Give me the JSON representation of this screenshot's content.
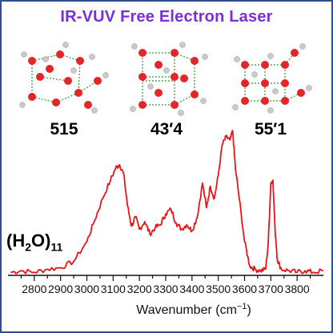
{
  "title": "IR-VUV Free Electron Laser",
  "title_color": "#7b2fd6",
  "clusters": [
    {
      "label": "515"
    },
    {
      "label": "43′4"
    },
    {
      "label": "55′1"
    }
  ],
  "species": {
    "main": "(H",
    "sub_1": "2",
    "mid": "O)",
    "sub_2": "11"
  },
  "colors": {
    "spectrum": "#e8141a",
    "oxygen": "#e4262b",
    "hydrogen": "#c9c9c9",
    "hbond": "#2e9a3a",
    "frame": "#2f4f8f"
  },
  "chart_data": {
    "type": "line",
    "title": "IR-VUV Free Electron Laser",
    "xlabel": "Wavenumber (cm−1)",
    "ylabel": "",
    "xlim": [
      2700,
      3900
    ],
    "ylim": [
      0,
      1
    ],
    "x_ticks": [
      2800,
      2900,
      3000,
      3100,
      3200,
      3300,
      3400,
      3500,
      3600,
      3700,
      3800
    ],
    "series": [
      {
        "name": "(H2O)11",
        "points": [
          [
            2710,
            0.02
          ],
          [
            2750,
            0.03
          ],
          [
            2800,
            0.02
          ],
          [
            2850,
            0.04
          ],
          [
            2900,
            0.05
          ],
          [
            2950,
            0.09
          ],
          [
            3000,
            0.22
          ],
          [
            3030,
            0.36
          ],
          [
            3060,
            0.5
          ],
          [
            3090,
            0.62
          ],
          [
            3110,
            0.7
          ],
          [
            3125,
            0.72
          ],
          [
            3140,
            0.66
          ],
          [
            3155,
            0.45
          ],
          [
            3170,
            0.32
          ],
          [
            3185,
            0.38
          ],
          [
            3200,
            0.3
          ],
          [
            3220,
            0.35
          ],
          [
            3240,
            0.27
          ],
          [
            3260,
            0.31
          ],
          [
            3280,
            0.33
          ],
          [
            3300,
            0.4
          ],
          [
            3320,
            0.43
          ],
          [
            3340,
            0.34
          ],
          [
            3360,
            0.3
          ],
          [
            3380,
            0.33
          ],
          [
            3400,
            0.29
          ],
          [
            3420,
            0.38
          ],
          [
            3440,
            0.6
          ],
          [
            3455,
            0.44
          ],
          [
            3470,
            0.58
          ],
          [
            3485,
            0.5
          ],
          [
            3500,
            0.65
          ],
          [
            3515,
            0.85
          ],
          [
            3530,
            0.9
          ],
          [
            3545,
            0.88
          ],
          [
            3555,
            0.94
          ],
          [
            3565,
            0.7
          ],
          [
            3580,
            0.5
          ],
          [
            3600,
            0.22
          ],
          [
            3620,
            0.06
          ],
          [
            3640,
            0.04
          ],
          [
            3660,
            0.03
          ],
          [
            3680,
            0.04
          ],
          [
            3690,
            0.2
          ],
          [
            3700,
            0.6
          ],
          [
            3708,
            0.62
          ],
          [
            3716,
            0.3
          ],
          [
            3725,
            0.1
          ],
          [
            3740,
            0.04
          ],
          [
            3770,
            0.03
          ],
          [
            3800,
            0.02
          ],
          [
            3830,
            0.03
          ],
          [
            3860,
            0.02
          ],
          [
            3900,
            0.03
          ]
        ]
      }
    ]
  }
}
